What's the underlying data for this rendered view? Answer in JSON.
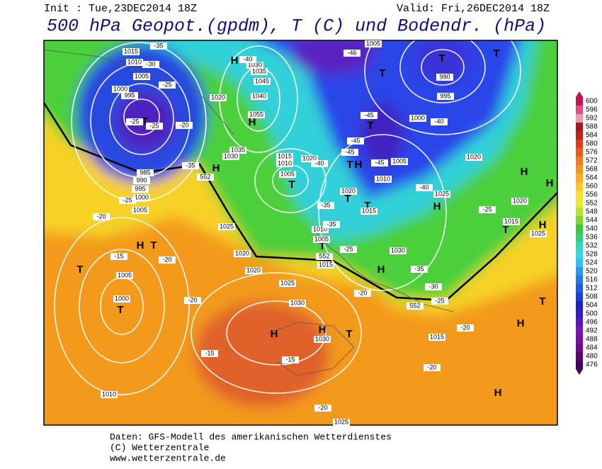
{
  "header": {
    "init": "Init : Tue,23DEC2014 18Z",
    "valid": "Valid: Fri,26DEC2014 18Z",
    "title": "500 hPa Geopot.(gpdm), T (C) und Bodendr. (hPa)"
  },
  "footer": {
    "lines": [
      "Daten: GFS-Modell des amerikanischen Wetterdienstes",
      "(C) Wetterzentrale",
      "www.wetterzentrale.de"
    ]
  },
  "colorbar": {
    "ticks": [
      600,
      596,
      592,
      588,
      584,
      580,
      576,
      572,
      568,
      564,
      560,
      556,
      552,
      548,
      544,
      540,
      536,
      532,
      528,
      524,
      520,
      516,
      512,
      508,
      504,
      500,
      496,
      492,
      488,
      484,
      480,
      476
    ],
    "colors": [
      "#c8104c",
      "#e0507a",
      "#f09ab0",
      "#a81818",
      "#c82020",
      "#e03a20",
      "#ec5a20",
      "#f07a1c",
      "#f5951a",
      "#f8b020",
      "#fcc824",
      "#fae030",
      "#e8ec30",
      "#b8e430",
      "#7cd838",
      "#3cc83c",
      "#30d07c",
      "#30d8c0",
      "#30d8e8",
      "#30c0f0",
      "#2898f0",
      "#2878ec",
      "#2458e4",
      "#1c3ce0",
      "#1820d0",
      "#3818c8",
      "#5818c0",
      "#7418b8",
      "#7c10a0",
      "#6c0c88",
      "#580870",
      "#440060"
    ]
  },
  "map": {
    "labels": [
      "T",
      "T",
      "H",
      "T",
      "H",
      "H",
      "T",
      "H",
      "H",
      "T",
      "H",
      "H",
      "H",
      "T",
      "T",
      "T",
      "T",
      "H",
      "H",
      "T",
      "T",
      "H",
      "T",
      "T",
      "T",
      "H",
      "H",
      "T",
      "T",
      "H",
      "1015",
      "1010",
      "1005",
      "1000",
      "995",
      "985",
      "990",
      "995",
      "1000",
      "1005",
      "1030",
      "1035",
      "1040",
      "1045",
      "1020",
      "1055",
      "1035",
      "1030",
      "1015",
      "1010",
      "1005",
      "1020",
      "1025",
      "1020",
      "1020",
      "1025",
      "1030",
      "1030",
      "1005",
      "1000",
      "1010",
      "1025",
      "1010",
      "1005",
      "1015",
      "1030",
      "1015",
      "1025",
      "1020",
      "1020",
      "1015",
      "1025",
      "1005",
      "1010",
      "1000",
      "995",
      "990",
      "1005",
      "1020",
      "1015",
      "-35",
      "-30",
      "-25",
      "-25",
      "-25",
      "-20",
      "-35",
      "-25",
      "-20",
      "-15",
      "-20",
      "-20",
      "-15",
      "-15",
      "-20",
      "-20",
      "-25",
      "-35",
      "-35",
      "-40",
      "-45",
      "-45",
      "-45",
      "-46",
      "-40",
      "-40",
      "-35",
      "-30",
      "-25",
      "-20",
      "-20",
      "-25",
      "-45",
      "-40",
      "552",
      "552",
      "552"
    ]
  }
}
